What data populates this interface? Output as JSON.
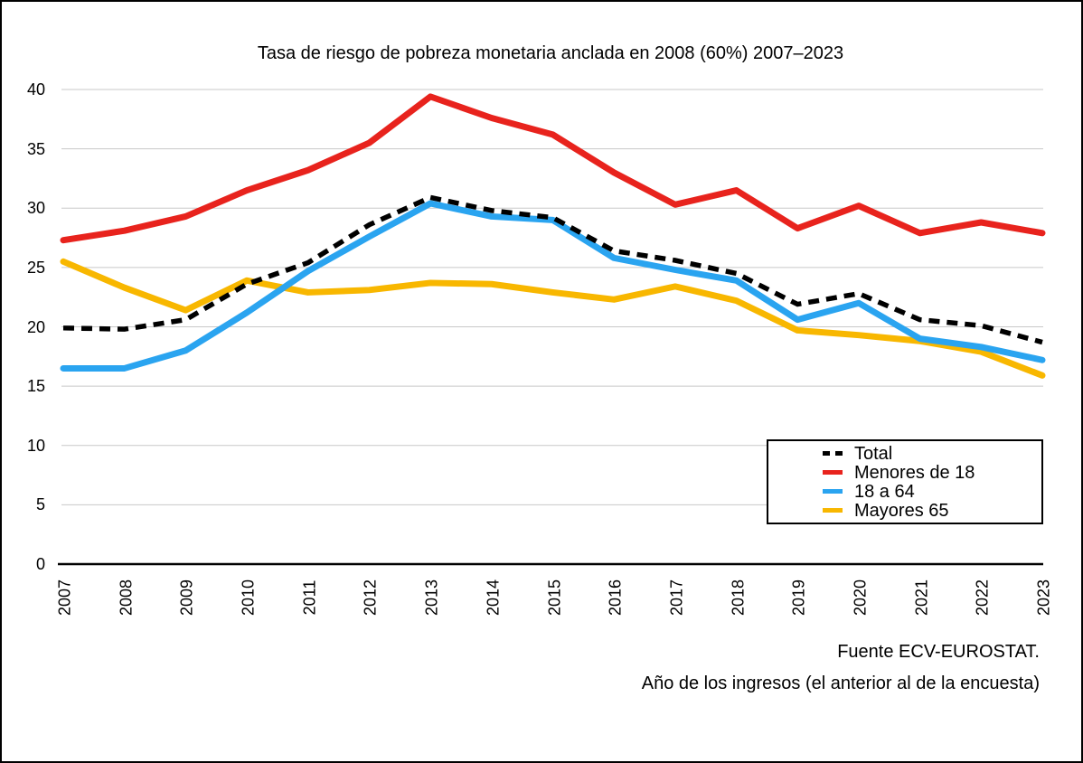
{
  "chart_data": {
    "type": "line",
    "title": "Tasa de riesgo de pobreza monetaria anclada en 2008 (60%) 2007–2023",
    "x": [
      2007,
      2008,
      2009,
      2010,
      2011,
      2012,
      2013,
      2014,
      2015,
      2016,
      2017,
      2018,
      2019,
      2020,
      2021,
      2022,
      2023
    ],
    "series": [
      {
        "name": "Total",
        "color": "#000000",
        "dashed": true,
        "values": [
          19.9,
          19.8,
          20.6,
          23.6,
          25.4,
          28.6,
          30.9,
          29.8,
          29.2,
          26.4,
          25.6,
          24.5,
          21.9,
          22.8,
          20.6,
          20.1,
          18.7
        ]
      },
      {
        "name": "Menores de 18",
        "color": "#e8231d",
        "dashed": false,
        "values": [
          27.3,
          28.1,
          29.3,
          31.5,
          33.2,
          35.5,
          39.4,
          37.6,
          36.2,
          33.0,
          30.3,
          31.5,
          28.3,
          30.2,
          27.9,
          28.8,
          27.9
        ]
      },
      {
        "name": "18 a 64",
        "color": "#2aa4f0",
        "dashed": false,
        "values": [
          16.5,
          16.5,
          18.0,
          21.2,
          24.7,
          27.6,
          30.4,
          29.3,
          29.0,
          25.8,
          24.8,
          23.9,
          20.6,
          22.0,
          19.0,
          18.3,
          17.2
        ]
      },
      {
        "name": "Mayores 65",
        "color": "#f8b700",
        "dashed": false,
        "values": [
          25.5,
          23.3,
          21.4,
          23.9,
          22.9,
          23.1,
          23.7,
          23.6,
          22.9,
          22.3,
          23.4,
          22.2,
          19.7,
          19.3,
          18.8,
          17.9,
          15.9
        ]
      }
    ],
    "ylim": [
      0,
      40
    ],
    "yticks": [
      0,
      5,
      10,
      15,
      20,
      25,
      30,
      35,
      40
    ],
    "grid": true,
    "legend_position": "inside-right",
    "xlabel": "",
    "ylabel": ""
  },
  "footer": {
    "line1": "Fuente ECV-EUROSTAT.",
    "line2": "Año de los ingresos (el anterior al de la encuesta)"
  },
  "style": {
    "grid_color": "#c8c8c8",
    "axis_color": "#000000",
    "background": "#ffffff",
    "border_color": "#000000"
  }
}
